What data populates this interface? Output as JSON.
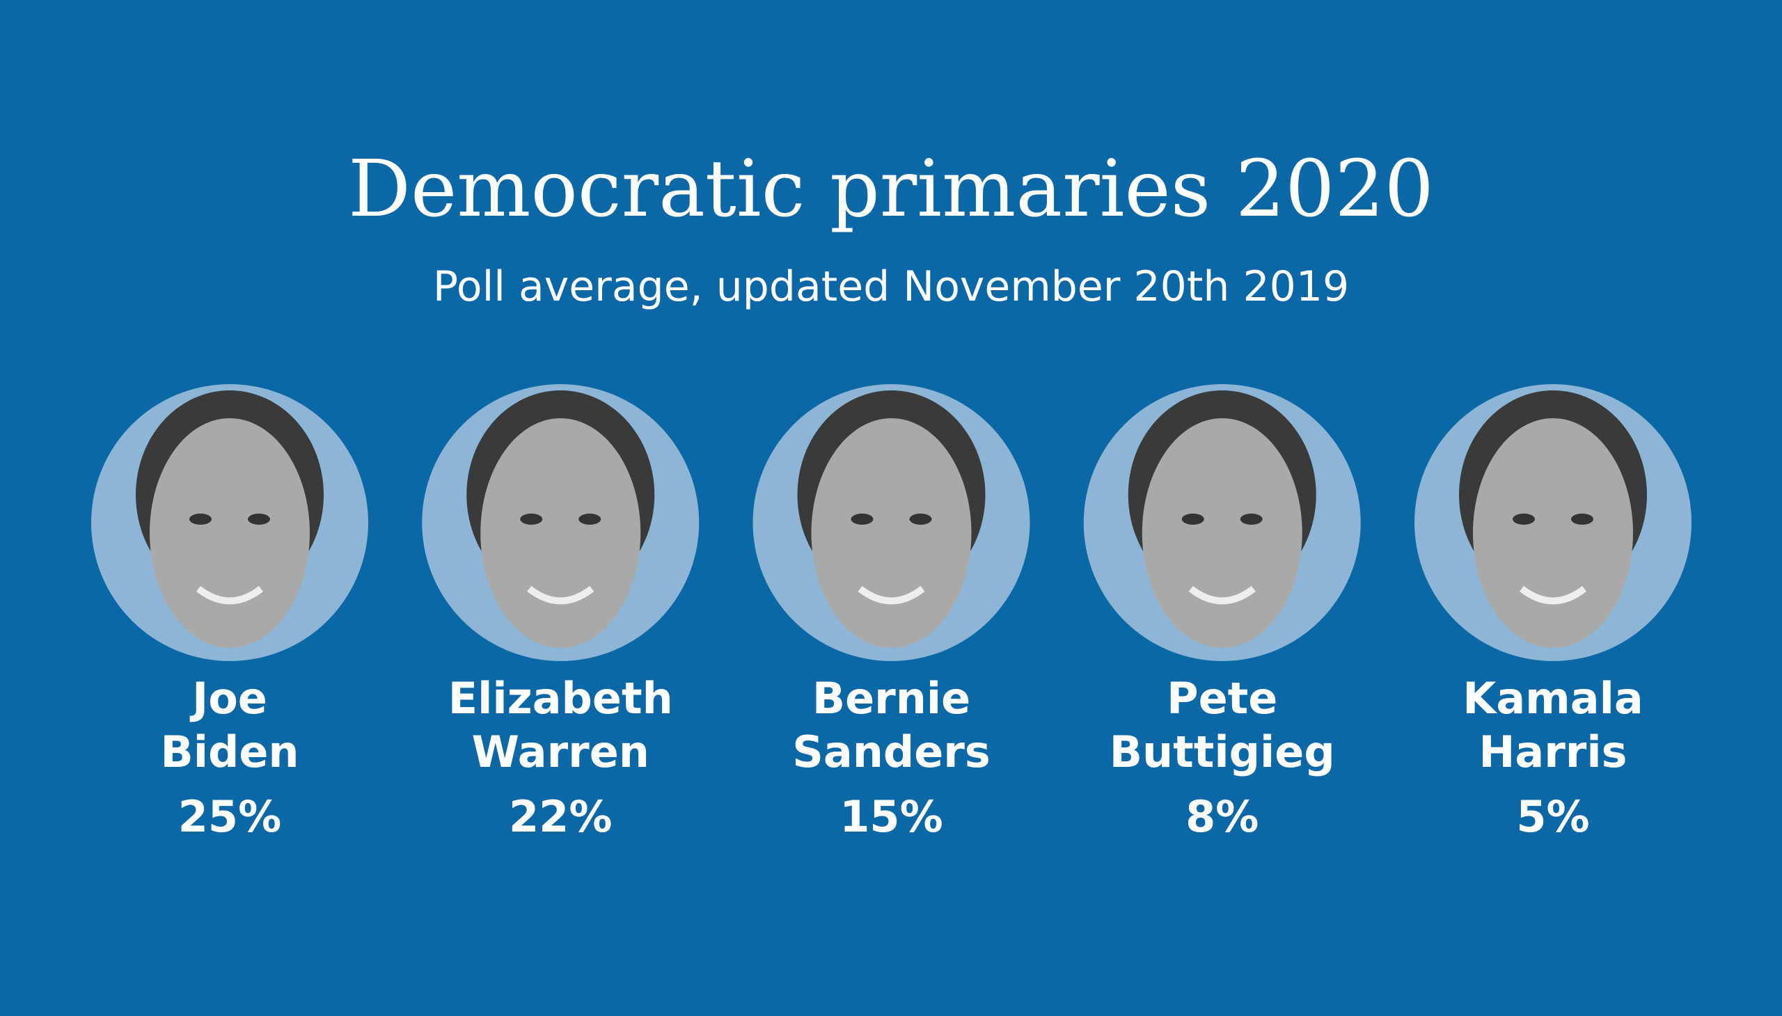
{
  "header": {
    "title": "Democratic primaries 2020",
    "subtitle": "Poll average, updated November 20th 2019"
  },
  "candidates": [
    {
      "first_name": "Joe",
      "last_name": "Biden",
      "poll": "25%"
    },
    {
      "first_name": "Elizabeth",
      "last_name": "Warren",
      "poll": "22%"
    },
    {
      "first_name": "Bernie",
      "last_name": "Sanders",
      "poll": "15%"
    },
    {
      "first_name": "Pete",
      "last_name": "Buttigieg",
      "poll": "8%"
    },
    {
      "first_name": "Kamala",
      "last_name": "Harris",
      "poll": "5%"
    }
  ]
}
